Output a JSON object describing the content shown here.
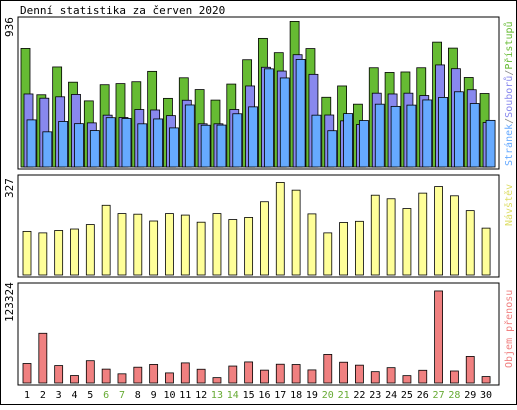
{
  "title": "Denní statistika za červen 2020",
  "colors": {
    "background": "#ffffff",
    "frame": "#000000",
    "bar_outline": "#000000",
    "pristupy": "#66bb33",
    "soubory": "#8888ee",
    "stranky": "#66aaff",
    "navstevy": "#ffff99",
    "objem": "#f08080",
    "weekend_label": "#66aa33",
    "weekday_label": "#000000",
    "label_gray": "#888888"
  },
  "chart_data": [
    {
      "type": "bar",
      "name": "hits-panel",
      "ymax_label": "936",
      "ylim": [
        0,
        936
      ],
      "legend_vertical": {
        "stranky": "Stránek",
        "soubory": "Souborů",
        "pristupy": "Přístupů",
        "separator": "/"
      },
      "categories": [
        "1",
        "2",
        "3",
        "4",
        "5",
        "6",
        "7",
        "8",
        "9",
        "10",
        "11",
        "12",
        "13",
        "14",
        "15",
        "16",
        "17",
        "18",
        "19",
        "20",
        "21",
        "22",
        "23",
        "24",
        "25",
        "26",
        "27",
        "28",
        "29",
        "30"
      ],
      "weekend_days": [
        "6",
        "7",
        "13",
        "14",
        "20",
        "21",
        "27",
        "28"
      ],
      "series": [
        {
          "name": "Přístupů",
          "key": "pristupy",
          "values": [
            755,
            460,
            637,
            540,
            421,
            524,
            531,
            543,
            609,
            437,
            568,
            493,
            426,
            528,
            683,
            819,
            728,
            927,
            754,
            444,
            516,
            400,
            632,
            602,
            605,
            632,
            795,
            757,
            570,
            468
          ]
        },
        {
          "name": "Souborů",
          "key": "soubory",
          "values": [
            465,
            438,
            447,
            462,
            281,
            330,
            315,
            366,
            363,
            327,
            425,
            275,
            275,
            366,
            516,
            635,
            611,
            715,
            590,
            331,
            294,
            270,
            470,
            465,
            470,
            455,
            650,
            626,
            492,
            283
          ]
        },
        {
          "name": "Stránek",
          "key": "stranky",
          "values": [
            300,
            224,
            290,
            276,
            232,
            314,
            309,
            275,
            306,
            249,
            395,
            266,
            267,
            339,
            383,
            625,
            567,
            685,
            330,
            231,
            340,
            296,
            400,
            386,
            394,
            427,
            443,
            479,
            404,
            297
          ]
        }
      ]
    },
    {
      "type": "bar",
      "name": "visits-panel",
      "ymax_label": "327",
      "ylim": [
        0,
        327
      ],
      "legend_vertical": {
        "navstevy": "Návštěv"
      },
      "categories": [
        "1",
        "2",
        "3",
        "4",
        "5",
        "6",
        "7",
        "8",
        "9",
        "10",
        "11",
        "12",
        "13",
        "14",
        "15",
        "16",
        "17",
        "18",
        "19",
        "20",
        "21",
        "22",
        "23",
        "24",
        "25",
        "26",
        "27",
        "28",
        "29",
        "30"
      ],
      "series": [
        {
          "name": "Návštěv",
          "key": "navstevy",
          "values": [
            147,
            142,
            150,
            155,
            170,
            235,
            207,
            205,
            182,
            207,
            202,
            178,
            207,
            187,
            194,
            247,
            312,
            286,
            206,
            142,
            177,
            181,
            269,
            257,
            224,
            276,
            298,
            267,
            217,
            158
          ]
        }
      ]
    },
    {
      "type": "bar",
      "name": "volume-panel",
      "ymax_label": "123324",
      "ylim": [
        0,
        123324
      ],
      "legend_vertical": {
        "objem": "Objem přenosu"
      },
      "categories": [
        "1",
        "2",
        "3",
        "4",
        "5",
        "6",
        "7",
        "8",
        "9",
        "10",
        "11",
        "12",
        "13",
        "14",
        "15",
        "16",
        "17",
        "18",
        "19",
        "20",
        "21",
        "22",
        "23",
        "24",
        "25",
        "26",
        "27",
        "28",
        "29",
        "30"
      ],
      "series": [
        {
          "name": "Objem přenosu",
          "key": "objem",
          "values": [
            24810,
            63210,
            22130,
            9480,
            28350,
            17650,
            11670,
            20090,
            23600,
            12830,
            25560,
            17490,
            6810,
            21550,
            26780,
            16350,
            23880,
            23510,
            16630,
            36330,
            26420,
            22680,
            14400,
            19490,
            9350,
            16170,
            117020,
            15260,
            33780,
            8190
          ]
        }
      ]
    }
  ]
}
